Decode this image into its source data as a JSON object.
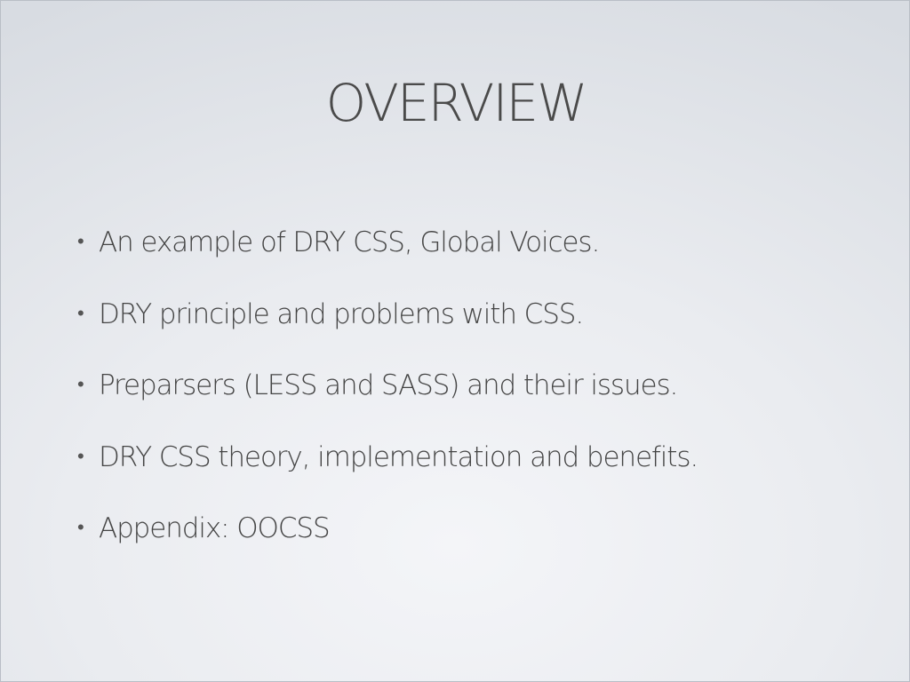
{
  "slide": {
    "title": "OVERVIEW",
    "bullet_symbol": "•",
    "bullets": [
      "An example of DRY CSS, Global Voices.",
      "DRY principle and problems with CSS.",
      "Preparsers (LESS and SASS) and their issues.",
      "DRY CSS theory, implementation and benefits.",
      "Appendix: OOCSS"
    ]
  },
  "colors": {
    "background_light": "#f4f5f8",
    "background_dark": "#d8dce2",
    "text": "#454545"
  }
}
